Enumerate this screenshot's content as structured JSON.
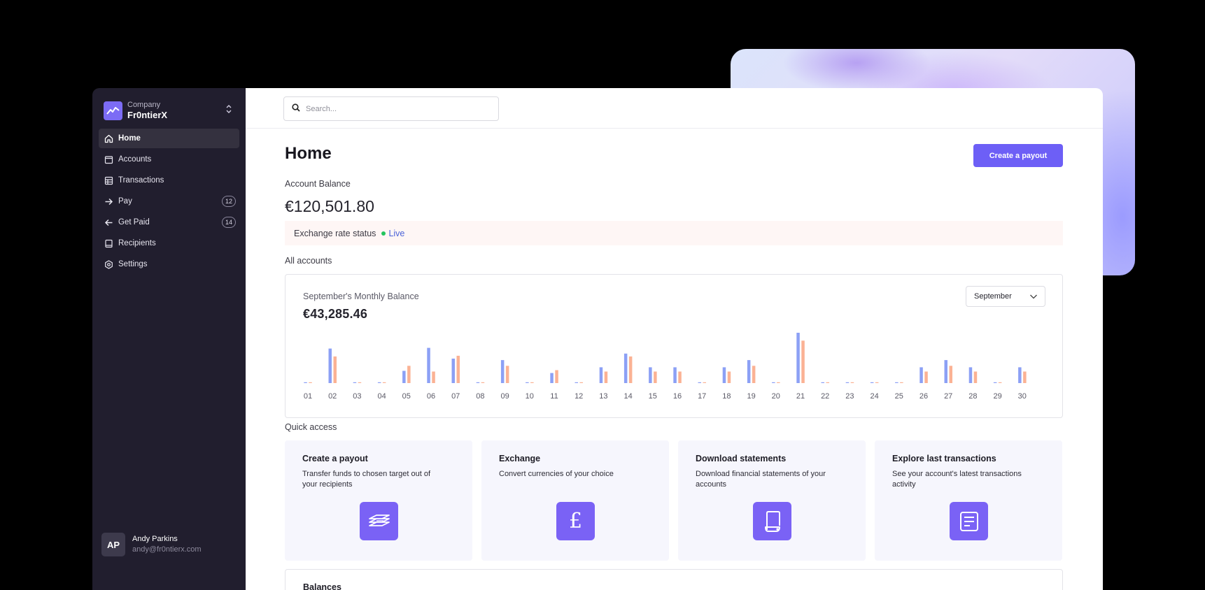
{
  "company": {
    "label": "Company",
    "name": "Fr0ntierX"
  },
  "sidebar": {
    "items": [
      {
        "label": "Home",
        "icon": "home-icon",
        "active": true
      },
      {
        "label": "Accounts",
        "icon": "folder-icon"
      },
      {
        "label": "Transactions",
        "icon": "table-icon"
      },
      {
        "label": "Pay",
        "icon": "arrow-right-icon",
        "badge": "12"
      },
      {
        "label": "Get Paid",
        "icon": "arrow-left-icon",
        "badge": "14"
      },
      {
        "label": "Recipients",
        "icon": "book-icon"
      },
      {
        "label": "Settings",
        "icon": "gear-icon"
      }
    ]
  },
  "user": {
    "initials": "AP",
    "name": "Andy Parkins",
    "email": "andy@fr0ntierx.com"
  },
  "search": {
    "placeholder": "Search..."
  },
  "header": {
    "title": "Home",
    "primary_button": "Create a payout"
  },
  "balance": {
    "label": "Account Balance",
    "value": "€120,501.80"
  },
  "exchange": {
    "label": "Exchange rate status",
    "status": "Live"
  },
  "all_accounts_label": "All accounts",
  "monthly": {
    "subtitle": "September's Monthly Balance",
    "value": "€43,285.46",
    "selected_month": "September"
  },
  "chart_data": {
    "type": "bar",
    "categories": [
      "01",
      "02",
      "03",
      "04",
      "05",
      "06",
      "07",
      "08",
      "09",
      "10",
      "11",
      "12",
      "13",
      "14",
      "15",
      "16",
      "17",
      "18",
      "19",
      "20",
      "21",
      "22",
      "23",
      "24",
      "25",
      "26",
      "27",
      "28",
      "29",
      "30"
    ],
    "series": [
      {
        "values": [
          0,
          48,
          0,
          0,
          17,
          49,
          34,
          0,
          32,
          0,
          14,
          0,
          22,
          41,
          22,
          22,
          0,
          22,
          32,
          0,
          70,
          0,
          0,
          0,
          0,
          22,
          32,
          22,
          0,
          22
        ]
      },
      {
        "values": [
          0,
          37,
          0,
          0,
          24,
          16,
          38,
          0,
          24,
          0,
          18,
          0,
          16,
          37,
          16,
          16,
          0,
          16,
          24,
          0,
          59,
          0,
          0,
          0,
          0,
          16,
          24,
          16,
          0,
          16
        ]
      }
    ],
    "colors": [
      "#8ca0f5",
      "#fbb294"
    ],
    "grid": false,
    "legend": "none"
  },
  "quick_access": {
    "label": "Quick access",
    "cards": [
      {
        "title": "Create a payout",
        "desc": "Transfer funds to chosen target out of your recipients",
        "icon": "money-stack-icon"
      },
      {
        "title": "Exchange",
        "desc": "Convert currencies of your choice",
        "icon": "pound-icon",
        "glyph": "£"
      },
      {
        "title": "Download statements",
        "desc": "Download financial statements of your accounts",
        "icon": "scroll-icon"
      },
      {
        "title": "Explore last transactions",
        "desc": "See your account's latest transactions activity",
        "icon": "document-icon"
      }
    ]
  },
  "balances": {
    "title": "Balances"
  }
}
